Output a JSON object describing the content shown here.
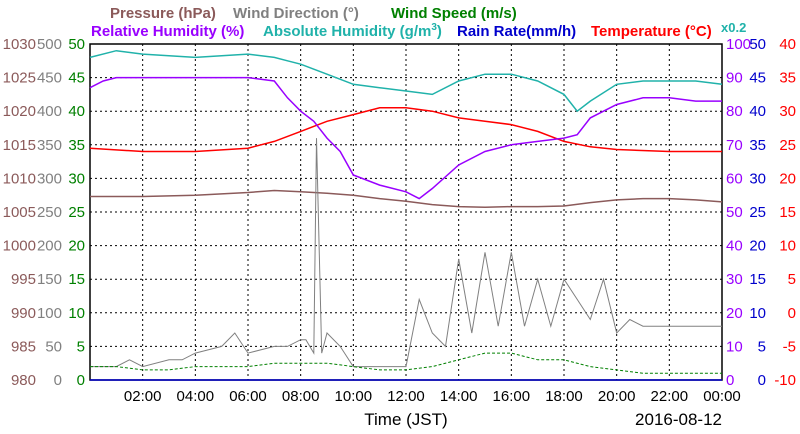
{
  "legend": {
    "row1": [
      {
        "label": "Pressure (hPa)",
        "color": "#8B5A5A"
      },
      {
        "label": "Wind Direction (°)",
        "color": "#808080"
      },
      {
        "label": "Wind Speed (m/s)",
        "color": "#008000"
      }
    ],
    "row2": [
      {
        "label": "Relative Humidity (%)",
        "color": "#9900FF"
      },
      {
        "label": "Absolute Humidity (g/m",
        "sup": "3",
        "close": ")",
        "color": "#20B2AA"
      },
      {
        "label": "Rain Rate(mm/h)",
        "color": "#0000CC"
      },
      {
        "label": "Temperature (°C)",
        "color": "#FF0000"
      },
      {
        "label": "x0.2",
        "color": "#20B2AA"
      }
    ]
  },
  "axes": {
    "pressure_ticks": [
      "1030",
      "1025",
      "1020",
      "1015",
      "1010",
      "1005",
      "1000",
      "995",
      "990",
      "985",
      "980"
    ],
    "wind_dir_ticks": [
      "500",
      "450",
      "400",
      "350",
      "300",
      "250",
      "200",
      "150",
      "100",
      "50",
      "0"
    ],
    "wind_speed_ticks": [
      "50",
      "45",
      "40",
      "35",
      "30",
      "25",
      "20",
      "15",
      "10",
      "5",
      "0"
    ],
    "humidity_ticks": [
      "100",
      "90",
      "80",
      "70",
      "60",
      "50",
      "40",
      "30",
      "20",
      "10",
      "0"
    ],
    "rain_ticks": [
      "50",
      "45",
      "40",
      "35",
      "30",
      "25",
      "20",
      "15",
      "10",
      "5",
      "0"
    ],
    "temp_ticks": [
      "40",
      "35",
      "30",
      "25",
      "20",
      "15",
      "10",
      "5",
      "0",
      "-5",
      "-10"
    ],
    "x_ticks": [
      "02:00",
      "04:00",
      "06:00",
      "08:00",
      "10:00",
      "12:00",
      "14:00",
      "16:00",
      "18:00",
      "20:00",
      "22:00",
      "00:00"
    ],
    "x_title": "Time (JST)",
    "date": "2016-08-12"
  },
  "colors": {
    "pressure": "#8B5A5A",
    "wind_dir": "#808080",
    "wind_speed": "#008000",
    "rel_humidity": "#9900FF",
    "abs_humidity": "#20B2AA",
    "rain": "#0000CC",
    "temperature": "#FF0000",
    "grid": "#000000"
  },
  "chart_data": {
    "type": "line",
    "x_range_hours": [
      0,
      24
    ],
    "grid": true,
    "series": [
      {
        "name": "Temperature (°C)",
        "axis": "temp",
        "ylim": [
          -10,
          40
        ],
        "x": [
          0,
          2,
          4,
          6,
          7,
          8,
          9,
          10,
          11,
          12,
          13,
          14,
          15,
          16,
          17,
          18,
          19,
          20,
          22,
          24
        ],
        "values": [
          24.5,
          24.0,
          24.0,
          24.5,
          25.5,
          27.0,
          28.5,
          29.5,
          30.5,
          30.5,
          30.0,
          29.0,
          28.5,
          28.0,
          27.0,
          25.5,
          24.7,
          24.3,
          24.0,
          24.0
        ]
      },
      {
        "name": "Relative Humidity (%)",
        "axis": "humidity",
        "ylim": [
          0,
          100
        ],
        "x": [
          0,
          0.5,
          1,
          2,
          4,
          6,
          7,
          7.5,
          8,
          8.5,
          9,
          9.5,
          10,
          11,
          12,
          12.5,
          13,
          14,
          15,
          16,
          17,
          18,
          18.5,
          19,
          20,
          21,
          22,
          23,
          24
        ],
        "values": [
          87,
          89,
          90,
          90,
          90,
          90,
          89,
          84,
          80,
          77,
          72,
          68,
          61,
          58,
          56,
          54,
          57,
          64,
          68,
          70,
          71,
          72,
          73,
          78,
          82,
          84,
          84,
          83,
          83
        ]
      },
      {
        "name": "Absolute Humidity (g/m3) x0.2",
        "axis": "humidity",
        "ylim": [
          0,
          100
        ],
        "x": [
          0,
          1,
          2,
          4,
          6,
          7,
          7.5,
          8,
          9,
          10,
          11,
          12,
          13,
          14,
          15,
          16,
          17,
          18,
          18.5,
          19,
          20,
          21,
          22,
          23,
          24
        ],
        "values": [
          96,
          98,
          97,
          96,
          97,
          96,
          95,
          94,
          91,
          88,
          87,
          86,
          85,
          89,
          91,
          91,
          89,
          85,
          80,
          83,
          88,
          89,
          89,
          89,
          88
        ]
      },
      {
        "name": "Pressure (hPa)",
        "axis": "pressure",
        "ylim": [
          980,
          1030
        ],
        "x": [
          0,
          2,
          4,
          6,
          7,
          8,
          9,
          10,
          11,
          12,
          13,
          14,
          15,
          16,
          17,
          18,
          19,
          20,
          21,
          22,
          23,
          24
        ],
        "values": [
          1007.3,
          1007.3,
          1007.5,
          1007.9,
          1008.2,
          1008.0,
          1007.8,
          1007.5,
          1007.0,
          1006.6,
          1006.1,
          1005.8,
          1005.7,
          1005.8,
          1005.8,
          1005.9,
          1006.4,
          1006.8,
          1007.0,
          1007.0,
          1006.8,
          1006.5
        ]
      },
      {
        "name": "Wind Direction (°)",
        "axis": "wind_dir",
        "ylim": [
          0,
          500
        ],
        "x": [
          0,
          1,
          1.5,
          2,
          3,
          3.5,
          4,
          5,
          5.5,
          6,
          7,
          7.5,
          8,
          8.2,
          8.5,
          8.6,
          8.8,
          9,
          9.5,
          10,
          11,
          12,
          12.5,
          13,
          13.5,
          14,
          14.5,
          15,
          15.5,
          16,
          16.5,
          17,
          17.5,
          18,
          18.5,
          19,
          19.5,
          20,
          20.5,
          21,
          22,
          23,
          24
        ],
        "values": [
          20,
          20,
          30,
          20,
          30,
          30,
          40,
          50,
          70,
          40,
          50,
          50,
          60,
          60,
          40,
          360,
          40,
          70,
          50,
          20,
          20,
          20,
          120,
          70,
          50,
          180,
          70,
          190,
          80,
          190,
          80,
          150,
          80,
          150,
          120,
          90,
          150,
          70,
          90,
          80,
          80,
          80,
          80
        ]
      },
      {
        "name": "Wind Speed (m/s)",
        "axis": "wind_speed",
        "ylim": [
          0,
          50
        ],
        "x": [
          0,
          1,
          2,
          3,
          4,
          5,
          6,
          7,
          8,
          9,
          10,
          11,
          12,
          13,
          14,
          15,
          16,
          17,
          18,
          19,
          20,
          21,
          22,
          23,
          24
        ],
        "values": [
          2,
          2,
          1.5,
          1.5,
          2,
          2,
          2,
          2.5,
          2.5,
          2.5,
          2,
          1.5,
          1.5,
          2,
          3,
          4,
          4,
          3,
          3,
          2,
          1.5,
          1,
          1,
          1,
          1
        ]
      },
      {
        "name": "Rain Rate(mm/h)",
        "axis": "rain",
        "ylim": [
          0,
          50
        ],
        "x": [
          0,
          24
        ],
        "values": [
          0,
          0
        ]
      }
    ]
  }
}
